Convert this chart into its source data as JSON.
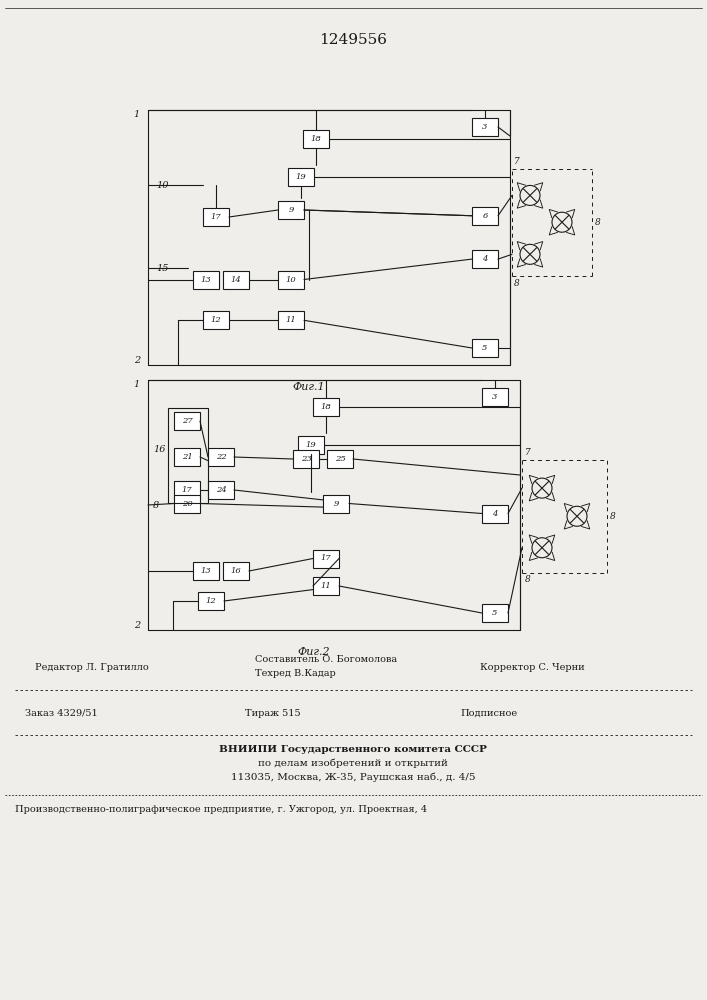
{
  "patent_number": "1249556",
  "fig1_label": "Фиг.1",
  "fig2_label": "Фиг.2",
  "background_color": "#f0eeea",
  "line_color": "#1a1a1a",
  "editor_line": "Редактор Л. Гратилло",
  "composer_line": "Составитель О. Богомолова",
  "corrector_line": "Корректор С. Черни",
  "techred_line": "Техред В.Кадар",
  "order_line": "Заказ 4329/51",
  "tirazh_line": "Тираж 515",
  "podpisnoe_line": "Подписное",
  "vnipi_line1": "ВНИИПИ Государственного комитета СССР",
  "vnipi_line2": "по делам изобретений и открытий",
  "vnipi_line3": "113035, Москва, Ж-35, Раушская наб., д. 4/5",
  "factory_line": "Производственно-полиграфическое предприятие, г. Ужгород, ул. Проектная, 4"
}
